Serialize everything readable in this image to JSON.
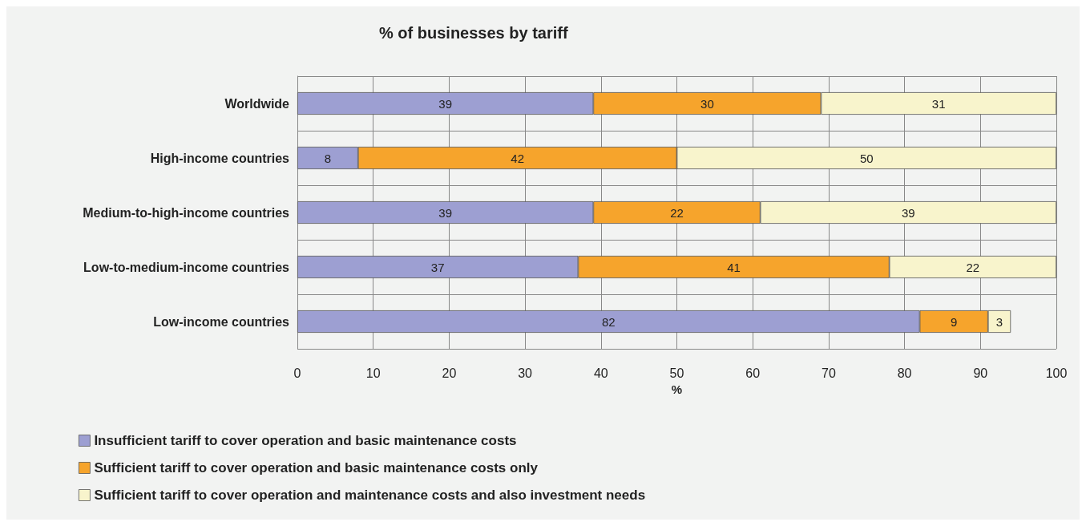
{
  "chart_data": {
    "type": "bar",
    "title": "% of businesses by tariff",
    "xlabel": "%",
    "orientation": "horizontal",
    "stacked": true,
    "categories": [
      "Worldwide",
      "High-income countries",
      "Medium-to-high-income countries",
      "Low-to-medium-income countries",
      "Low-income countries"
    ],
    "series": [
      {
        "name": "Insufficient tariff to cover operation and basic maintenance costs",
        "color": "#9d9fd2",
        "values": [
          39,
          8,
          39,
          37,
          82
        ]
      },
      {
        "name": "Sufficient tariff to cover operation and basic maintenance costs only",
        "color": "#f6a42c",
        "values": [
          30,
          42,
          22,
          41,
          9
        ]
      },
      {
        "name": "Sufficient tariff to cover operation and maintenance costs and also investment needs",
        "color": "#f8f4cc",
        "values": [
          31,
          50,
          39,
          22,
          3
        ]
      }
    ],
    "xlim": [
      0,
      100
    ],
    "xticks": [
      0,
      10,
      20,
      30,
      40,
      50,
      60,
      70,
      80,
      90,
      100
    ],
    "grid": true,
    "legend": "bottom left",
    "data_labels": true
  }
}
